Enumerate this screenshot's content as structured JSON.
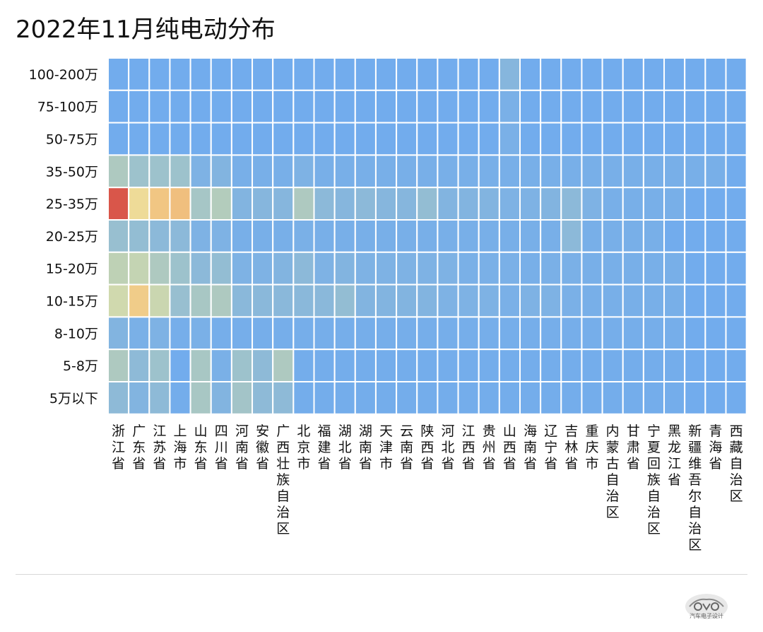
{
  "chart_data": {
    "type": "heatmap",
    "title": "2022年11月纯电动分布",
    "y_categories": [
      "100-200万",
      "75-100万",
      "50-75万",
      "35-50万",
      "25-35万",
      "20-25万",
      "15-20万",
      "10-15万",
      "8-10万",
      "5-8万",
      "5万以下"
    ],
    "x_categories": [
      "浙江省",
      "广东省",
      "江苏省",
      "上海市",
      "山东省",
      "四川省",
      "河南省",
      "安徽省",
      "广西壮族自治区",
      "北京市",
      "福建省",
      "湖北省",
      "湖南省",
      "天津市",
      "云南省",
      "陕西省",
      "河北省",
      "江西省",
      "贵州省",
      "山西省",
      "海南省",
      "辽宁省",
      "吉林省",
      "重庆市",
      "内蒙古自治区",
      "甘肃省",
      "宁夏回族自治区",
      "黑龙江省",
      "新疆维吾尔自治区",
      "青海省",
      "西藏自治区"
    ],
    "values": [
      [
        0.02,
        0.02,
        0.02,
        0.02,
        0.02,
        0.02,
        0.02,
        0.02,
        0.02,
        0.02,
        0.02,
        0.02,
        0.02,
        0.02,
        0.02,
        0.02,
        0.02,
        0.02,
        0.02,
        0.12,
        0.02,
        0.02,
        0.02,
        0.02,
        0.02,
        0.02,
        0.02,
        0.02,
        0.02,
        0.02,
        0.02
      ],
      [
        0.02,
        0.02,
        0.02,
        0.02,
        0.02,
        0.02,
        0.02,
        0.02,
        0.02,
        0.02,
        0.02,
        0.02,
        0.02,
        0.02,
        0.02,
        0.02,
        0.02,
        0.02,
        0.02,
        0.06,
        0.02,
        0.02,
        0.02,
        0.02,
        0.02,
        0.02,
        0.02,
        0.02,
        0.02,
        0.02,
        0.02
      ],
      [
        0.02,
        0.02,
        0.02,
        0.02,
        0.02,
        0.02,
        0.02,
        0.02,
        0.02,
        0.02,
        0.02,
        0.02,
        0.02,
        0.02,
        0.02,
        0.02,
        0.02,
        0.02,
        0.02,
        0.06,
        0.02,
        0.02,
        0.02,
        0.02,
        0.02,
        0.02,
        0.02,
        0.02,
        0.02,
        0.02,
        0.02
      ],
      [
        0.28,
        0.22,
        0.22,
        0.22,
        0.08,
        0.1,
        0.05,
        0.05,
        0.05,
        0.08,
        0.05,
        0.05,
        0.05,
        0.05,
        0.05,
        0.05,
        0.05,
        0.05,
        0.05,
        0.05,
        0.05,
        0.05,
        0.05,
        0.05,
        0.05,
        0.05,
        0.05,
        0.05,
        0.05,
        0.05,
        0.02
      ],
      [
        1.0,
        0.55,
        0.65,
        0.68,
        0.25,
        0.3,
        0.1,
        0.12,
        0.12,
        0.28,
        0.15,
        0.12,
        0.15,
        0.12,
        0.12,
        0.18,
        0.1,
        0.1,
        0.1,
        0.08,
        0.08,
        0.1,
        0.15,
        0.08,
        0.05,
        0.05,
        0.05,
        0.05,
        0.02,
        0.02,
        0.02
      ],
      [
        0.2,
        0.18,
        0.15,
        0.15,
        0.08,
        0.08,
        0.05,
        0.05,
        0.05,
        0.06,
        0.05,
        0.05,
        0.05,
        0.05,
        0.05,
        0.05,
        0.05,
        0.05,
        0.05,
        0.05,
        0.05,
        0.05,
        0.15,
        0.05,
        0.05,
        0.05,
        0.05,
        0.02,
        0.02,
        0.02,
        0.02
      ],
      [
        0.34,
        0.36,
        0.28,
        0.22,
        0.15,
        0.18,
        0.08,
        0.08,
        0.1,
        0.15,
        0.08,
        0.1,
        0.08,
        0.08,
        0.08,
        0.08,
        0.08,
        0.06,
        0.06,
        0.06,
        0.05,
        0.06,
        0.06,
        0.05,
        0.05,
        0.05,
        0.05,
        0.05,
        0.02,
        0.02,
        0.02
      ],
      [
        0.4,
        0.62,
        0.38,
        0.2,
        0.26,
        0.28,
        0.14,
        0.14,
        0.14,
        0.14,
        0.14,
        0.18,
        0.1,
        0.1,
        0.1,
        0.1,
        0.08,
        0.08,
        0.08,
        0.06,
        0.08,
        0.08,
        0.06,
        0.05,
        0.05,
        0.05,
        0.05,
        0.05,
        0.02,
        0.02,
        0.02
      ],
      [
        0.1,
        0.06,
        0.08,
        0.04,
        0.06,
        0.04,
        0.04,
        0.04,
        0.04,
        0.04,
        0.04,
        0.04,
        0.04,
        0.04,
        0.04,
        0.04,
        0.04,
        0.04,
        0.04,
        0.04,
        0.04,
        0.04,
        0.04,
        0.04,
        0.04,
        0.04,
        0.04,
        0.04,
        0.02,
        0.02,
        0.02
      ],
      [
        0.28,
        0.16,
        0.22,
        0.02,
        0.26,
        0.06,
        0.22,
        0.16,
        0.28,
        0.03,
        0.03,
        0.03,
        0.03,
        0.03,
        0.03,
        0.03,
        0.03,
        0.03,
        0.03,
        0.03,
        0.03,
        0.03,
        0.03,
        0.03,
        0.03,
        0.03,
        0.03,
        0.03,
        0.02,
        0.02,
        0.02
      ],
      [
        0.16,
        0.1,
        0.16,
        0.03,
        0.26,
        0.1,
        0.24,
        0.16,
        0.16,
        0.03,
        0.03,
        0.03,
        0.03,
        0.03,
        0.03,
        0.03,
        0.03,
        0.03,
        0.03,
        0.03,
        0.03,
        0.03,
        0.03,
        0.03,
        0.03,
        0.03,
        0.03,
        0.03,
        0.02,
        0.02,
        0.02
      ]
    ],
    "colorscale": [
      "#6eaaf0",
      "#8fbbd6",
      "#bcd0b6",
      "#ede6a2",
      "#f1c27f",
      "#e69a72",
      "#d9564a"
    ],
    "grid": true,
    "legend": "none"
  },
  "footer": {
    "logo_text": "汽车电子设计"
  }
}
